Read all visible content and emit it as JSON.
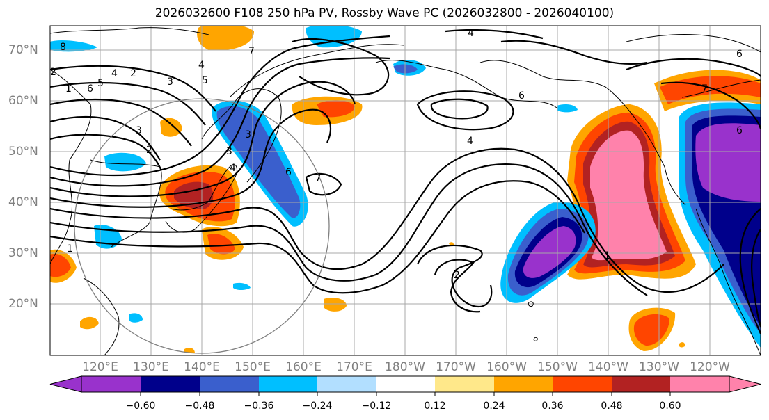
{
  "title": "2026032600 F108 250 hPa PV, Rossby Wave PC (2026032800 - 2026040100)",
  "lat_labels": [
    "70°N",
    "60°N",
    "50°N",
    "40°N",
    "30°N",
    "20°N"
  ],
  "lon_labels": [
    "120°E",
    "130°E",
    "140°E",
    "150°E",
    "160°E",
    "170°E",
    "180°W",
    "170°W",
    "160°W",
    "150°W",
    "140°W",
    "130°W",
    "120°W"
  ],
  "contour_labels": [
    "8",
    "7",
    "6",
    "5",
    "4",
    "3",
    "2",
    "1",
    "2",
    "3",
    "4",
    "5",
    "6",
    "7",
    "4",
    "6",
    "7",
    "4",
    "2",
    "1",
    "1",
    "2",
    "3",
    "4",
    "6",
    "6",
    "3"
  ],
  "colorbar": {
    "ticks": [
      "−0.60",
      "−0.48",
      "−0.36",
      "−0.24",
      "−0.12",
      "0.12",
      "0.24",
      "0.36",
      "0.48",
      "0.60"
    ],
    "colors": [
      "#9932cc",
      "#00008b",
      "#3a5fcd",
      "#00bfff",
      "#b2dfff",
      "#ffffff",
      "#ffe88a",
      "#ffa500",
      "#ff4500",
      "#b22222",
      "#ff82ab"
    ]
  }
}
